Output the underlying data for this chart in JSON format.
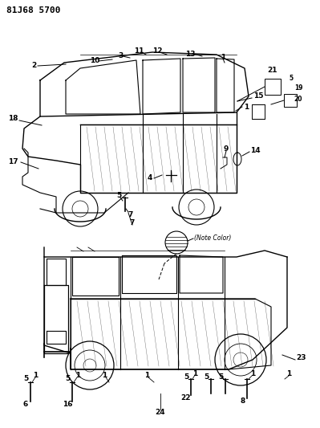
{
  "title": "81J68 5700",
  "bg_color": "#ffffff",
  "line_color": "#000000",
  "fig_width": 3.99,
  "fig_height": 5.33,
  "dpi": 100
}
